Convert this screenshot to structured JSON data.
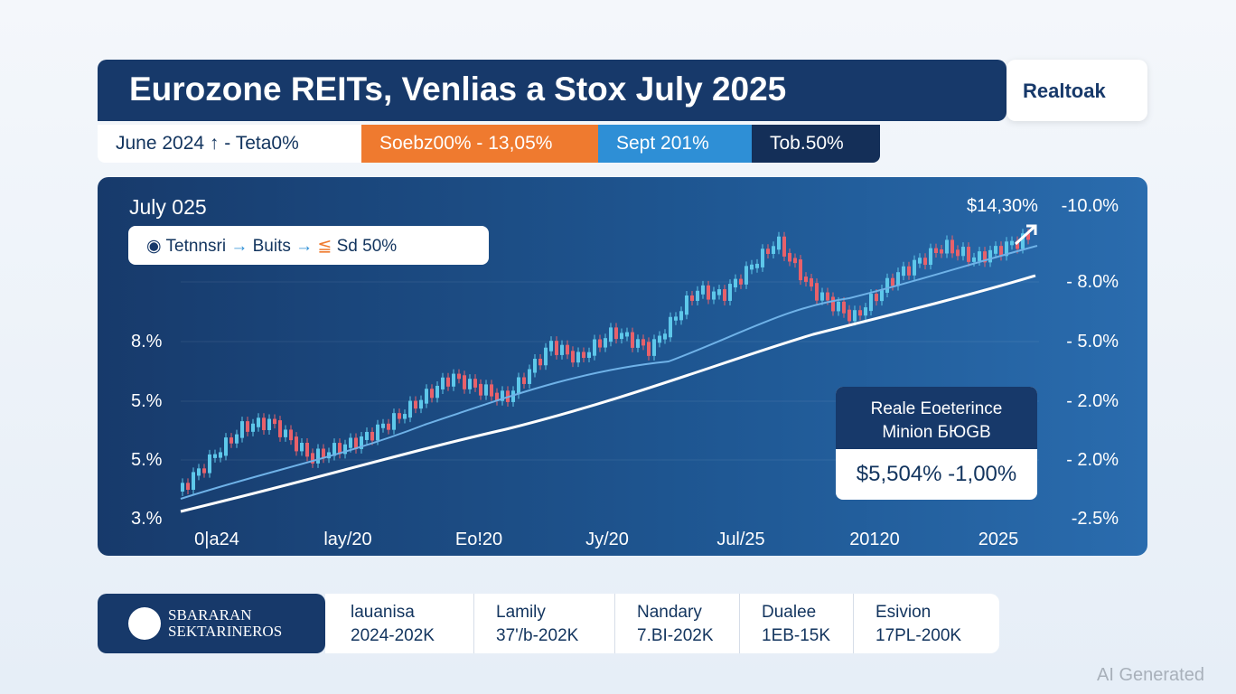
{
  "header": {
    "title": "Eurozone REITs, Venlias a Stox July 2025",
    "logo": "Realtoak"
  },
  "tabs": [
    "June 2024 ↑ - Teta0%",
    "Soebz00% - 13,05%",
    "Sept 201%",
    "Tob.50%"
  ],
  "panel": {
    "subtitle": "July 025",
    "legend": [
      "Tetnnsri",
      "Buits",
      "Sd 50%"
    ],
    "top_value": "$14,30%",
    "right_labels": [
      "-10.0%",
      "- 8.0%",
      "- 5.0%",
      "- 2.0%",
      "- 2.0%",
      "-2.5%"
    ],
    "left_labels": [
      "8.%",
      "5.%",
      "5.%",
      "3.%"
    ],
    "x_labels": [
      "0|a24",
      "lay/20",
      "Eo!20",
      "Jy/20",
      "Jul/25",
      "20120",
      "2025"
    ],
    "info": {
      "title": "Reale Eoeterince",
      "subtitle": "Minion БЮGB",
      "value": "$5,504% -1,00%"
    }
  },
  "footer": {
    "brand": [
      "SBARARAN",
      "SEKTARINEROS"
    ],
    "columns": [
      [
        "lauanisa",
        "2024-202K"
      ],
      [
        "Lamily",
        "37'/b-202K"
      ],
      [
        "Nandary",
        "7.BI-202K"
      ],
      [
        "Dualee",
        "1EB-15K"
      ],
      [
        "Esivion",
        "17PL-200K"
      ]
    ]
  },
  "watermark": "AI Generated"
}
